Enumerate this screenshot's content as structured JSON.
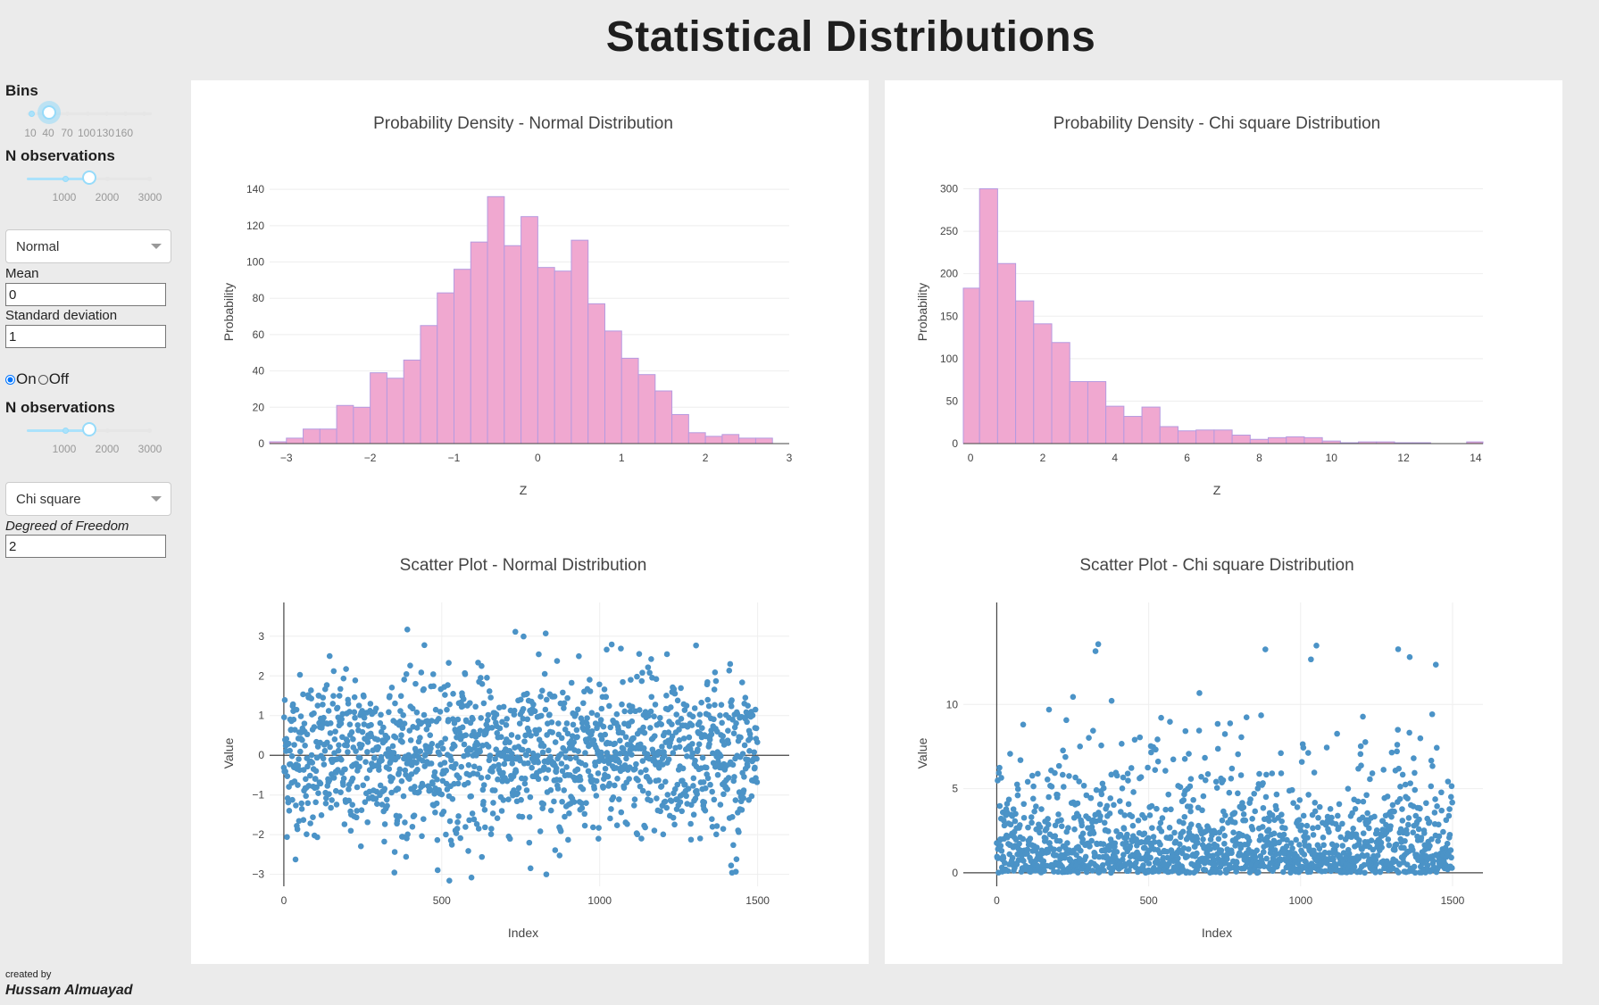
{
  "page_title": "Statistical Distributions",
  "sidebar": {
    "bins": {
      "label": "Bins",
      "marks": [
        "10",
        "40",
        "70",
        "100",
        "130",
        "160"
      ],
      "value": 40
    },
    "n_obs_1": {
      "label": "N observations",
      "marks": [
        "1000",
        "2000",
        "3000"
      ],
      "value": 1500
    },
    "dist_1": {
      "selected": "Normal",
      "mean_label": "Mean",
      "mean_value": "0",
      "sd_label": "Standard deviation",
      "sd_value": "1"
    },
    "toggle": {
      "on_label": "On",
      "off_label": "Off",
      "selected": "On"
    },
    "n_obs_2": {
      "label": "N observations",
      "marks": [
        "1000",
        "2000",
        "3000"
      ],
      "value": 1500
    },
    "dist_2": {
      "selected": "Chi square",
      "dof_label": "Degreed of Freedom",
      "dof_value": "2"
    }
  },
  "footer": {
    "created_by": "created by",
    "author": "Hussam Almuayad"
  },
  "colors": {
    "histogram_fill": "#f0a8d0",
    "histogram_edge": "#b59ae0",
    "scatter_point": "#4b93c7",
    "slider": "#96dbfa"
  },
  "chart_data": [
    {
      "id": "hist_normal",
      "type": "bar",
      "title": "Probability Density - Normal Distribution",
      "xlabel": "Z",
      "ylabel": "Probability",
      "xlim": [
        -3.2,
        3
      ],
      "ylim": [
        0,
        145
      ],
      "xticks": [
        -3,
        -2,
        -1,
        0,
        1,
        2,
        3
      ],
      "yticks": [
        0,
        20,
        40,
        60,
        80,
        100,
        120,
        140
      ],
      "bin_start": -3.2,
      "bin_width": 0.2,
      "values": [
        1,
        3,
        8,
        8,
        21,
        20,
        39,
        36,
        46,
        65,
        83,
        96,
        111,
        136,
        109,
        125,
        97,
        95,
        112,
        77,
        62,
        47,
        38,
        29,
        16,
        6,
        4,
        5,
        3,
        3
      ]
    },
    {
      "id": "hist_chi",
      "type": "bar",
      "title": "Probability Density - Chi square Distribution",
      "xlabel": "Z",
      "ylabel": "Probability",
      "xlim": [
        -0.2,
        14.2
      ],
      "ylim": [
        0,
        310
      ],
      "xticks": [
        0,
        2,
        4,
        6,
        8,
        10,
        12,
        14
      ],
      "yticks": [
        0,
        50,
        100,
        150,
        200,
        250,
        300
      ],
      "bin_start": -0.25,
      "bin_width": 0.5,
      "values": [
        183,
        300,
        212,
        168,
        141,
        119,
        73,
        73,
        44,
        32,
        43,
        20,
        15,
        16,
        16,
        10,
        5,
        7,
        8,
        7,
        3,
        1,
        2,
        2,
        1,
        1,
        0,
        0,
        2,
        0,
        1
      ]
    },
    {
      "id": "scatter_normal",
      "type": "scatter",
      "title": "Scatter Plot - Normal Distribution",
      "xlabel": "Index",
      "ylabel": "Value",
      "xlim": [
        -45,
        1600
      ],
      "ylim": [
        -3.3,
        3.4
      ],
      "xticks": [
        0,
        500,
        1000,
        1500
      ],
      "yticks": [
        -3,
        -2,
        -1,
        0,
        1,
        2,
        3
      ],
      "n": 1500,
      "distribution": "normal",
      "mean": 0,
      "sd": 1
    },
    {
      "id": "scatter_chi",
      "type": "scatter",
      "title": "Scatter Plot - Chi square Distribution",
      "xlabel": "Index",
      "ylabel": "Value",
      "xlim": [
        -110,
        1600
      ],
      "ylim": [
        -0.8,
        15
      ],
      "xticks": [
        0,
        500,
        1000,
        1500
      ],
      "yticks": [
        0,
        5,
        10
      ],
      "n": 1500,
      "distribution": "chi-square",
      "dof": 2
    }
  ]
}
